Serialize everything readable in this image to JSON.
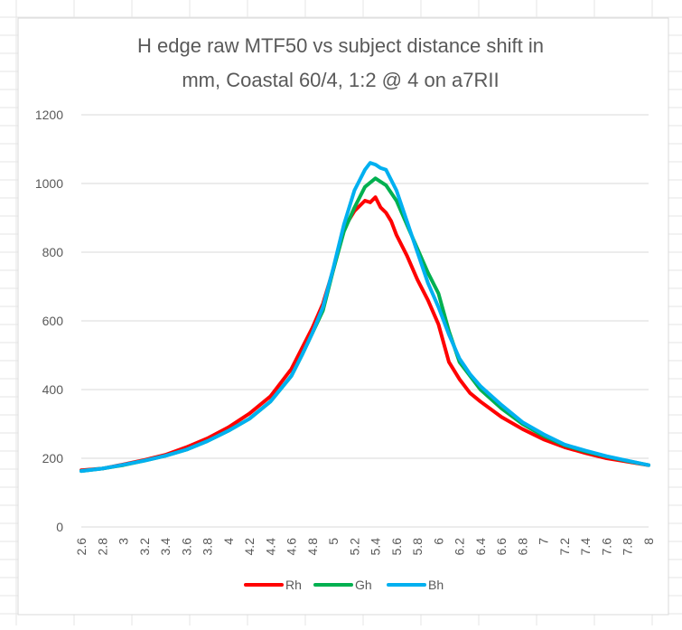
{
  "chart_data": {
    "type": "line",
    "title_lines": [
      "H edge raw MTF50 vs subject distance shift in",
      "mm, Coastal 60/4, 1:2 @ 4 on a7RII"
    ],
    "xlabel": "",
    "ylabel": "",
    "ylim": [
      0,
      1200
    ],
    "xlim": [
      2.6,
      8
    ],
    "grid": true,
    "legend_position": "bottom",
    "y_ticks": [
      "0",
      "200",
      "400",
      "600",
      "800",
      "1000",
      "1200"
    ],
    "x_ticks": [
      "2.6",
      "2.8",
      "3",
      "3.2",
      "3.4",
      "3.6",
      "3.8",
      "4",
      "4.2",
      "4.4",
      "4.6",
      "4.8",
      "5",
      "5.2",
      "5.4",
      "5.6",
      "5.8",
      "6",
      "6.2",
      "6.4",
      "6.6",
      "6.8",
      "7",
      "7.2",
      "7.4",
      "7.6",
      "7.8",
      "8"
    ],
    "series": [
      {
        "name": "Rh",
        "color": "#ff0000",
        "x": [
          2.6,
          2.8,
          3.0,
          3.2,
          3.4,
          3.6,
          3.8,
          4.0,
          4.2,
          4.4,
          4.6,
          4.7,
          4.8,
          4.9,
          5.0,
          5.1,
          5.2,
          5.3,
          5.35,
          5.4,
          5.45,
          5.5,
          5.55,
          5.6,
          5.7,
          5.8,
          5.9,
          6.0,
          6.1,
          6.2,
          6.3,
          6.4,
          6.6,
          6.8,
          7.0,
          7.2,
          7.4,
          7.6,
          7.8,
          8.0
        ],
        "y": [
          165,
          170,
          182,
          195,
          210,
          232,
          258,
          290,
          330,
          380,
          460,
          520,
          580,
          650,
          750,
          870,
          920,
          950,
          945,
          960,
          930,
          915,
          890,
          850,
          790,
          720,
          660,
          590,
          480,
          430,
          390,
          365,
          320,
          285,
          255,
          232,
          215,
          200,
          190,
          180
        ]
      },
      {
        "name": "Gh",
        "color": "#00b050",
        "x": [
          2.6,
          2.8,
          3.0,
          3.2,
          3.4,
          3.6,
          3.8,
          4.0,
          4.2,
          4.4,
          4.6,
          4.7,
          4.8,
          4.9,
          5.0,
          5.1,
          5.2,
          5.3,
          5.4,
          5.5,
          5.6,
          5.7,
          5.8,
          5.9,
          6.0,
          6.1,
          6.2,
          6.3,
          6.4,
          6.6,
          6.8,
          7.0,
          7.2,
          7.4,
          7.6,
          7.8,
          8.0
        ],
        "y": [
          163,
          170,
          180,
          193,
          207,
          225,
          250,
          280,
          315,
          365,
          440,
          500,
          565,
          630,
          750,
          860,
          930,
          990,
          1015,
          995,
          950,
          880,
          810,
          740,
          680,
          570,
          480,
          440,
          400,
          345,
          300,
          265,
          238,
          220,
          205,
          192,
          180
        ]
      },
      {
        "name": "Bh",
        "color": "#00b0f0",
        "x": [
          2.6,
          2.8,
          3.0,
          3.2,
          3.4,
          3.6,
          3.8,
          4.0,
          4.2,
          4.4,
          4.6,
          4.7,
          4.8,
          4.9,
          5.0,
          5.1,
          5.2,
          5.3,
          5.35,
          5.4,
          5.45,
          5.5,
          5.6,
          5.7,
          5.8,
          5.9,
          6.0,
          6.1,
          6.2,
          6.3,
          6.4,
          6.6,
          6.8,
          7.0,
          7.2,
          7.4,
          7.6,
          7.8,
          8.0
        ],
        "y": [
          163,
          170,
          181,
          193,
          207,
          225,
          250,
          280,
          315,
          365,
          440,
          500,
          565,
          640,
          755,
          880,
          980,
          1040,
          1060,
          1055,
          1045,
          1040,
          980,
          890,
          800,
          710,
          640,
          560,
          490,
          445,
          410,
          355,
          305,
          270,
          240,
          222,
          206,
          193,
          180
        ]
      }
    ]
  }
}
